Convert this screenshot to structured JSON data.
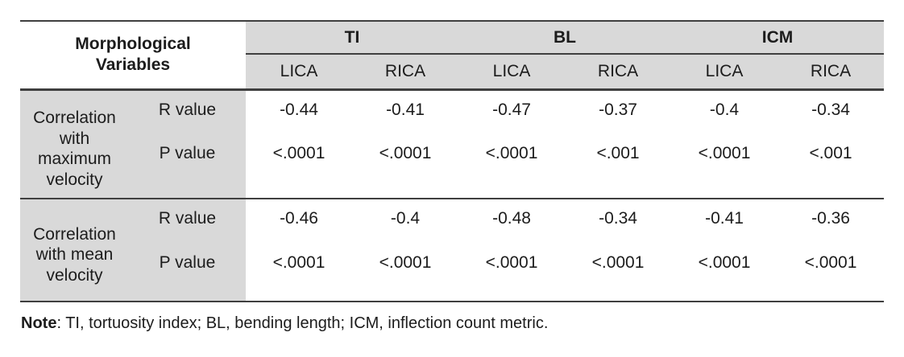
{
  "table": {
    "corner_header": "Morphological Variables",
    "group_headers": [
      "TI",
      "BL",
      "ICM"
    ],
    "sub_headers": [
      "LICA",
      "RICA",
      "LICA",
      "RICA",
      "LICA",
      "RICA"
    ],
    "row_groups": [
      {
        "label": "Correlation with maximum velocity",
        "r_label": "R value",
        "p_label": "P value",
        "r_values": [
          "-0.44",
          "-0.41",
          "-0.47",
          "-0.37",
          "-0.4",
          "-0.34"
        ],
        "p_values": [
          "<.0001",
          "<.0001",
          "<.0001",
          "<.001",
          "<.0001",
          "<.001"
        ]
      },
      {
        "label": "Correlation with mean velocity",
        "r_label": "R value",
        "p_label": "P value",
        "r_values": [
          "-0.46",
          "-0.4",
          "-0.48",
          "-0.34",
          "-0.41",
          "-0.36"
        ],
        "p_values": [
          "<.0001",
          "<.0001",
          "<.0001",
          "<.0001",
          "<.0001",
          "<.0001"
        ]
      }
    ],
    "note": {
      "label": "Note",
      "text": ": TI, tortuosity index; BL, bending length; ICM, inflection count metric."
    }
  },
  "colors": {
    "header_fill": "#d9d9d9",
    "rule": "#3f3f3f",
    "text": "#1c1c1c"
  },
  "chart_data": {
    "type": "table",
    "title": "Correlation of morphological variables with velocity",
    "column_groups": [
      "TI",
      "BL",
      "ICM"
    ],
    "columns": [
      "TI LICA",
      "TI RICA",
      "BL LICA",
      "BL RICA",
      "ICM LICA",
      "ICM RICA"
    ],
    "rows": [
      {
        "variable": "Correlation with maximum velocity",
        "metric": "R value",
        "values": [
          -0.44,
          -0.41,
          -0.47,
          -0.37,
          -0.4,
          -0.34
        ]
      },
      {
        "variable": "Correlation with maximum velocity",
        "metric": "P value",
        "values": [
          "<.0001",
          "<.0001",
          "<.0001",
          "<.001",
          "<.0001",
          "<.001"
        ]
      },
      {
        "variable": "Correlation with mean velocity",
        "metric": "R value",
        "values": [
          -0.46,
          -0.4,
          -0.48,
          -0.34,
          -0.41,
          -0.36
        ]
      },
      {
        "variable": "Correlation with mean velocity",
        "metric": "P value",
        "values": [
          "<.0001",
          "<.0001",
          "<.0001",
          "<.0001",
          "<.0001",
          "<.0001"
        ]
      }
    ],
    "note": "TI, tortuosity index; BL, bending length; ICM, inflection count metric."
  }
}
